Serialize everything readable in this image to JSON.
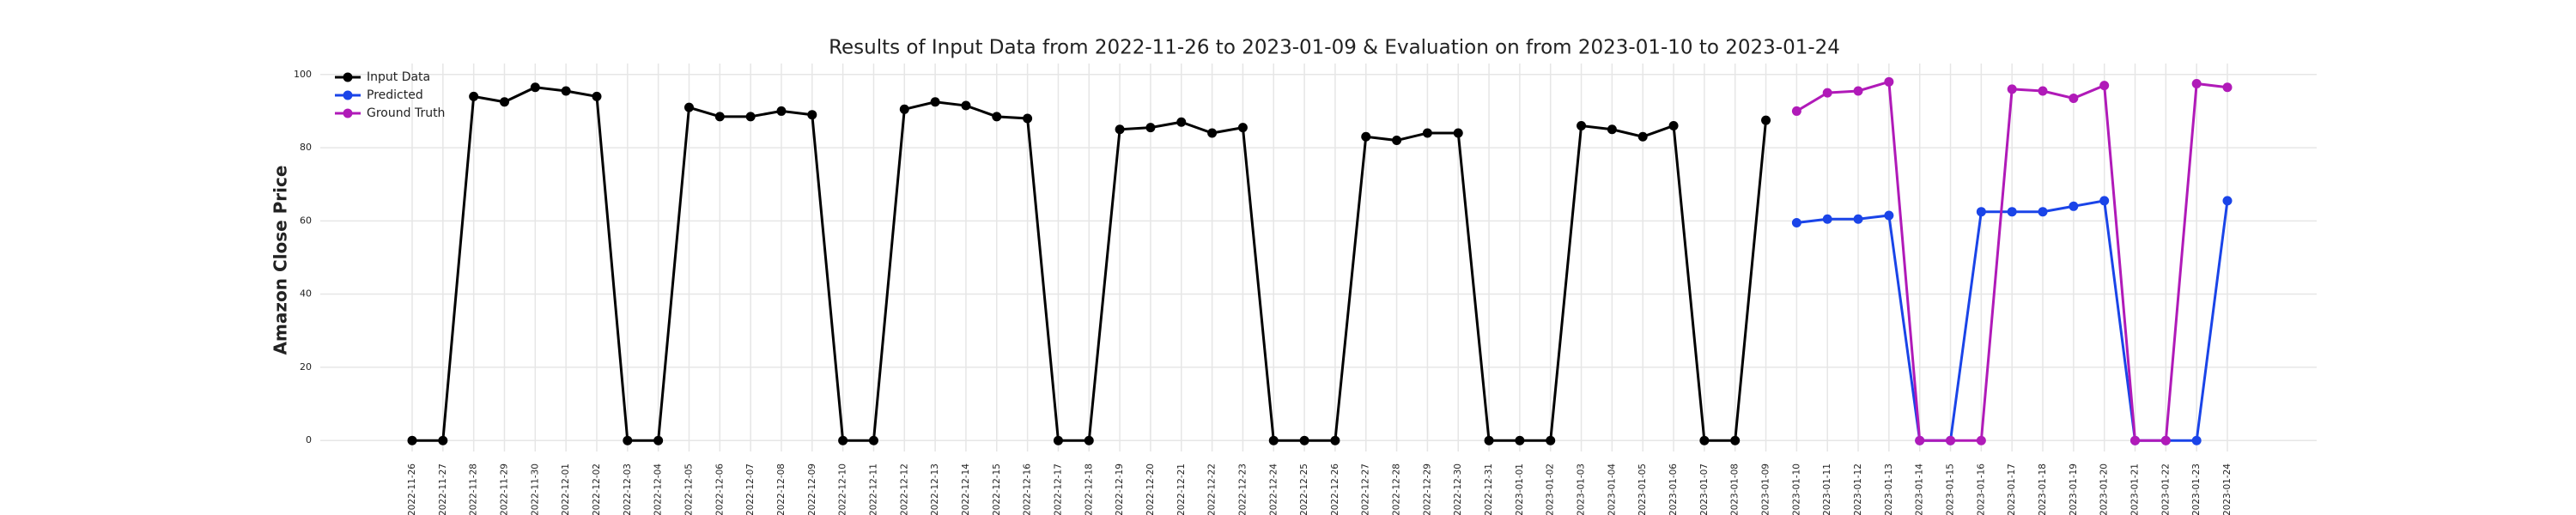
{
  "chart_data": {
    "type": "line",
    "title": "Results of Input Data from 2022-11-26 to 2023-01-09 & Evaluation on from 2023-01-10 to 2023-01-24",
    "y_label": "Amazon Close Price",
    "categories": [
      "2022-11-26",
      "2022-11-27",
      "2022-11-28",
      "2022-11-29",
      "2022-11-30",
      "2022-12-01",
      "2022-12-02",
      "2022-12-03",
      "2022-12-04",
      "2022-12-05",
      "2022-12-06",
      "2022-12-07",
      "2022-12-08",
      "2022-12-09",
      "2022-12-10",
      "2022-12-11",
      "2022-12-12",
      "2022-12-13",
      "2022-12-14",
      "2022-12-15",
      "2022-12-16",
      "2022-12-17",
      "2022-12-18",
      "2022-12-19",
      "2022-12-20",
      "2022-12-21",
      "2022-12-22",
      "2022-12-23",
      "2022-12-24",
      "2022-12-25",
      "2022-12-26",
      "2022-12-27",
      "2022-12-28",
      "2022-12-29",
      "2022-12-30",
      "2022-12-31",
      "2023-01-01",
      "2023-01-02",
      "2023-01-03",
      "2023-01-04",
      "2023-01-05",
      "2023-01-06",
      "2023-01-07",
      "2023-01-08",
      "2023-01-09",
      "2023-01-10",
      "2023-01-11",
      "2023-01-12",
      "2023-01-13",
      "2023-01-14",
      "2023-01-15",
      "2023-01-16",
      "2023-01-17",
      "2023-01-18",
      "2023-01-19",
      "2023-01-20",
      "2023-01-21",
      "2023-01-22",
      "2023-01-23",
      "2023-01-24"
    ],
    "series": [
      {
        "name": "Input Data",
        "color": "#000000",
        "values": [
          0,
          0,
          94,
          92.5,
          96.5,
          95.5,
          94,
          0,
          0,
          91,
          88.5,
          88.5,
          90,
          89,
          0,
          0,
          90.5,
          92.5,
          91.5,
          88.5,
          88,
          0,
          0,
          85,
          85.5,
          87,
          84,
          85.5,
          0,
          0,
          0,
          83,
          82,
          84,
          84,
          0,
          0,
          0,
          86,
          85,
          83,
          86,
          0,
          0,
          87.5,
          null,
          null,
          null,
          null,
          null,
          null,
          null,
          null,
          null,
          null,
          null,
          null,
          null,
          null,
          null
        ]
      },
      {
        "name": "Predicted",
        "color": "#1a44e8",
        "values": [
          null,
          null,
          null,
          null,
          null,
          null,
          null,
          null,
          null,
          null,
          null,
          null,
          null,
          null,
          null,
          null,
          null,
          null,
          null,
          null,
          null,
          null,
          null,
          null,
          null,
          null,
          null,
          null,
          null,
          null,
          null,
          null,
          null,
          null,
          null,
          null,
          null,
          null,
          null,
          null,
          null,
          null,
          null,
          null,
          null,
          59.5,
          60.5,
          60.5,
          61.5,
          0,
          0,
          62.5,
          62.5,
          62.5,
          64,
          65.5,
          0,
          0,
          0,
          65.5
        ]
      },
      {
        "name": "Ground Truth",
        "color": "#b01ab8",
        "values": [
          null,
          null,
          null,
          null,
          null,
          null,
          null,
          null,
          null,
          null,
          null,
          null,
          null,
          null,
          null,
          null,
          null,
          null,
          null,
          null,
          null,
          null,
          null,
          null,
          null,
          null,
          null,
          null,
          null,
          null,
          null,
          null,
          null,
          null,
          null,
          null,
          null,
          null,
          null,
          null,
          null,
          null,
          null,
          null,
          null,
          90,
          95,
          95.5,
          98,
          0,
          0,
          0,
          96,
          95.5,
          93.5,
          97,
          0,
          0,
          97.5,
          96.5
        ]
      }
    ],
    "ylim": [
      -3,
      103
    ],
    "yticks": [
      0,
      20,
      40,
      60,
      80,
      100
    ],
    "grid": true,
    "legend": "upper left"
  }
}
